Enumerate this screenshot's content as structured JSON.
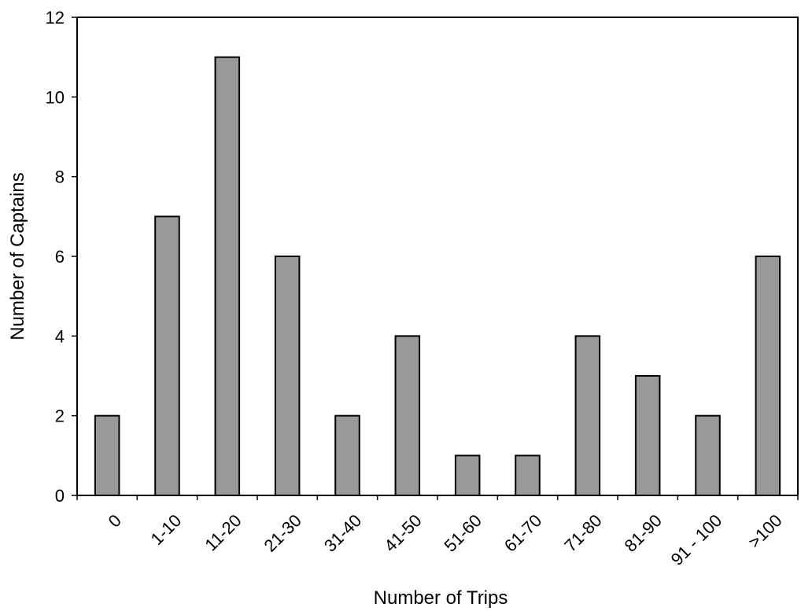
{
  "chart_data": {
    "type": "bar",
    "title": "",
    "xlabel": "Number of Trips",
    "ylabel": "Number of Captains",
    "categories": [
      "0",
      "1-10",
      "11-20",
      "21-30",
      "31-40",
      "41-50",
      "51-60",
      "61-70",
      "71-80",
      "81-90",
      "91 - 100",
      ">100"
    ],
    "values": [
      2,
      7,
      11,
      6,
      2,
      4,
      1,
      1,
      4,
      3,
      2,
      6
    ],
    "ylim": [
      0,
      12
    ],
    "yticks": [
      0,
      2,
      4,
      6,
      8,
      10,
      12
    ],
    "grid": false,
    "legend": false,
    "bar_color": "#999999",
    "bar_edge_color": "#000000"
  }
}
